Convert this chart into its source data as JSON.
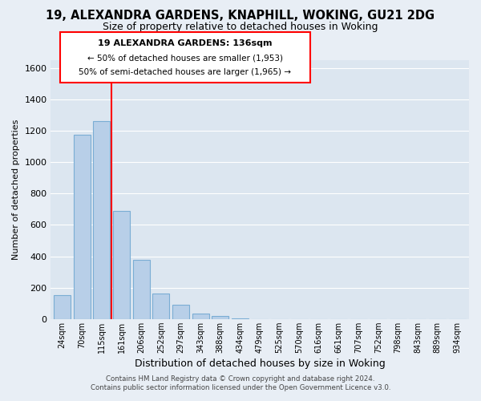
{
  "title": "19, ALEXANDRA GARDENS, KNAPHILL, WOKING, GU21 2DG",
  "subtitle": "Size of property relative to detached houses in Woking",
  "xlabel": "Distribution of detached houses by size in Woking",
  "ylabel": "Number of detached properties",
  "bar_labels": [
    "24sqm",
    "70sqm",
    "115sqm",
    "161sqm",
    "206sqm",
    "252sqm",
    "297sqm",
    "343sqm",
    "388sqm",
    "434sqm",
    "479sqm",
    "525sqm",
    "570sqm",
    "616sqm",
    "661sqm",
    "707sqm",
    "752sqm",
    "798sqm",
    "843sqm",
    "889sqm",
    "934sqm"
  ],
  "bar_values": [
    150,
    1175,
    1260,
    690,
    375,
    160,
    90,
    35,
    20,
    5,
    0,
    0,
    0,
    0,
    0,
    0,
    0,
    0,
    0,
    0,
    0
  ],
  "bar_color": "#b8cfe8",
  "bar_edge_color": "#7aadd4",
  "background_color": "#e8eef5",
  "grid_color": "#ffffff",
  "plot_bg_color": "#dce6f0",
  "ylim": [
    0,
    1650
  ],
  "yticks": [
    0,
    200,
    400,
    600,
    800,
    1000,
    1200,
    1400,
    1600
  ],
  "red_line_x": 2.48,
  "annotation_line1": "19 ALEXANDRA GARDENS: 136sqm",
  "annotation_line2": "← 50% of detached houses are smaller (1,953)",
  "annotation_line3": "50% of semi-detached houses are larger (1,965) →",
  "footer_line1": "Contains HM Land Registry data © Crown copyright and database right 2024.",
  "footer_line2": "Contains public sector information licensed under the Open Government Licence v3.0."
}
